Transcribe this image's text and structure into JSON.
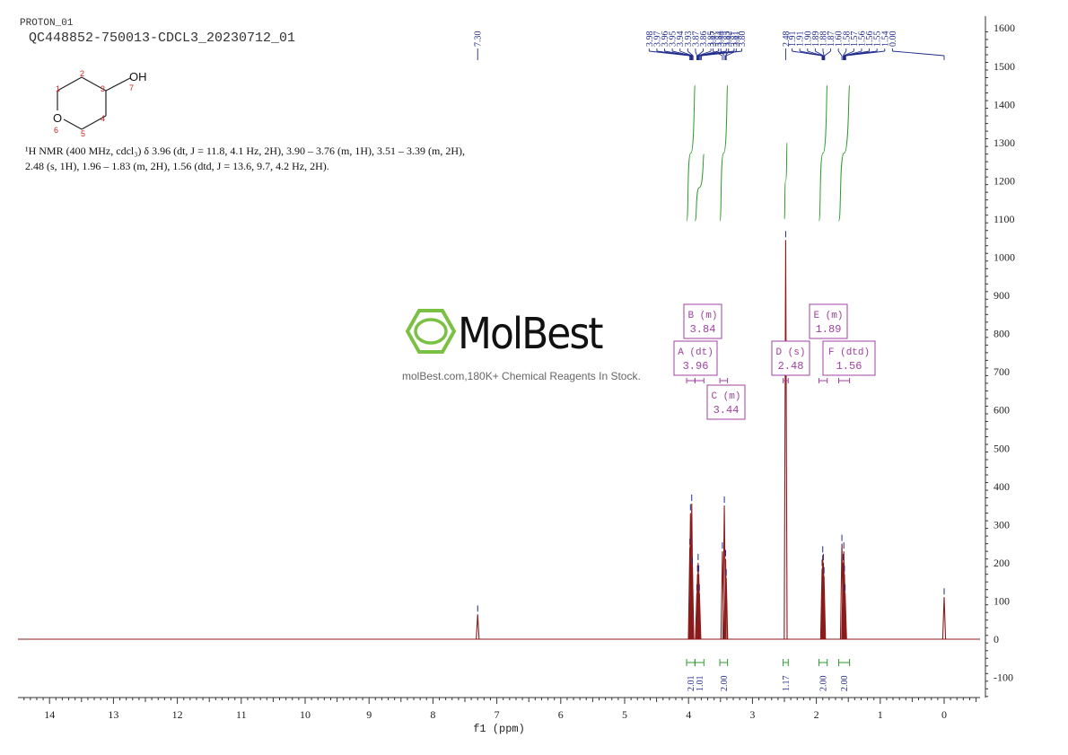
{
  "header": {
    "experiment": "PROTON_01",
    "sample_id": "QC448852-750013-CDCL3_20230712_01"
  },
  "molecule": {
    "oh_label": "OH",
    "ring_oxygen_label": "O",
    "atom_numbers": [
      "1",
      "2",
      "3",
      "4",
      "5",
      "6",
      "7"
    ]
  },
  "nmr_description": {
    "line1": "¹H NMR (400 MHz, cdcl₃) δ 3.96 (dt, J = 11.8, 4.1 Hz, 2H), 3.90 – 3.76 (m, 1H), 3.51 – 3.39 (m, 2H),",
    "line2": "2.48 (s, 1H), 1.96 – 1.83 (m, 2H), 1.56 (dtd, J = 13.6, 9.7, 4.2 Hz, 2H)."
  },
  "watermark": {
    "brand": "MolBest",
    "tagline": "molBest.com,180K+ Chemical Reagents In Stock."
  },
  "colors": {
    "spectrum": "#8b1a1a",
    "peak_labels": "#1f2a8a",
    "integral": "#2e9a2e",
    "multiplet": "#a040a0",
    "logo_green": "#7ac143",
    "axis": "#333333"
  },
  "chart_data": {
    "type": "line",
    "xlabel": "f1 (ppm)",
    "xlim": [
      14.5,
      -0.55
    ],
    "ylim": [
      -155,
      1620
    ],
    "x_ticks": [
      14,
      13,
      12,
      11,
      10,
      9,
      8,
      7,
      6,
      5,
      4,
      3,
      2,
      1,
      0
    ],
    "y_ticks": [
      1600,
      1500,
      1400,
      1300,
      1200,
      1100,
      1000,
      900,
      800,
      700,
      600,
      500,
      400,
      300,
      200,
      100,
      0,
      -100
    ],
    "peaks": [
      {
        "ppm": 7.3,
        "height": 65
      },
      {
        "ppm": 3.98,
        "height": 240
      },
      {
        "ppm": 3.97,
        "height": 330
      },
      {
        "ppm": 3.96,
        "height": 250
      },
      {
        "ppm": 3.95,
        "height": 355
      },
      {
        "ppm": 3.94,
        "height": 190
      },
      {
        "ppm": 3.87,
        "height": 120
      },
      {
        "ppm": 3.86,
        "height": 170
      },
      {
        "ppm": 3.85,
        "height": 200
      },
      {
        "ppm": 3.84,
        "height": 170
      },
      {
        "ppm": 3.83,
        "height": 120
      },
      {
        "ppm": 3.47,
        "height": 230
      },
      {
        "ppm": 3.44,
        "height": 350
      },
      {
        "ppm": 3.42,
        "height": 210
      },
      {
        "ppm": 3.41,
        "height": 160
      },
      {
        "ppm": 2.48,
        "height": 1045
      },
      {
        "ppm": 1.91,
        "height": 185
      },
      {
        "ppm": 1.9,
        "height": 220
      },
      {
        "ppm": 1.89,
        "height": 200
      },
      {
        "ppm": 1.88,
        "height": 165
      },
      {
        "ppm": 1.6,
        "height": 250
      },
      {
        "ppm": 1.58,
        "height": 200
      },
      {
        "ppm": 1.57,
        "height": 230
      },
      {
        "ppm": 1.56,
        "height": 170
      },
      {
        "ppm": 1.55,
        "height": 120
      },
      {
        "ppm": 0.0,
        "height": 110
      }
    ],
    "peak_labels": [
      {
        "group": [
          3.98,
          3.97,
          3.96,
          3.95,
          3.94,
          3.93,
          3.87,
          3.86,
          3.85,
          3.84,
          3.83,
          3.81,
          3.8
        ],
        "labels": [
          "3.98",
          "3.97",
          "3.96",
          "3.95",
          "3.94",
          "3.93",
          "3.87",
          "3.86",
          "3.85",
          "3.84",
          "3.83",
          "3.81",
          "3.80"
        ]
      },
      {
        "group": [
          3.47,
          3.44,
          3.42,
          3.41
        ],
        "labels": [
          "3.47",
          "3.44",
          "3.42",
          "3.41"
        ]
      },
      {
        "group": [
          2.48
        ],
        "labels": [
          "2.48"
        ]
      },
      {
        "group": [
          1.91,
          1.91,
          1.9,
          1.89,
          1.88,
          1.87,
          1.6,
          1.58,
          1.57,
          1.56,
          1.56,
          1.55,
          1.54,
          0.0
        ],
        "labels": [
          "1.91",
          "1.91",
          "1.90",
          "1.89",
          "1.88",
          "1.87",
          "1.60",
          "1.58",
          "1.57",
          "1.56",
          "1.56",
          "1.55",
          "1.54",
          "0.00"
        ]
      },
      {
        "group": [
          7.3
        ],
        "labels": [
          "7.30"
        ]
      }
    ],
    "integrals": [
      {
        "from": 4.03,
        "to": 3.9,
        "value": "2.01"
      },
      {
        "from": 3.9,
        "to": 3.76,
        "value": "1.01"
      },
      {
        "from": 3.51,
        "to": 3.39,
        "value": "2.00"
      },
      {
        "from": 2.52,
        "to": 2.44,
        "value": "1.17"
      },
      {
        "from": 1.96,
        "to": 1.83,
        "value": "2.00"
      },
      {
        "from": 1.65,
        "to": 1.48,
        "value": "2.00"
      }
    ],
    "multiplets": [
      {
        "id": "A",
        "type": "dt",
        "shift": "3.96",
        "range": [
          4.03,
          3.9
        ]
      },
      {
        "id": "B",
        "type": "m",
        "shift": "3.84",
        "range": [
          3.9,
          3.76
        ]
      },
      {
        "id": "C",
        "type": "m",
        "shift": "3.44",
        "range": [
          3.51,
          3.39
        ]
      },
      {
        "id": "D",
        "type": "s",
        "shift": "2.48",
        "range": [
          2.52,
          2.44
        ]
      },
      {
        "id": "E",
        "type": "m",
        "shift": "1.89",
        "range": [
          1.96,
          1.83
        ]
      },
      {
        "id": "F",
        "type": "dtd",
        "shift": "1.56",
        "range": [
          1.65,
          1.48
        ]
      }
    ],
    "integral_curves": [
      {
        "from": 4.03,
        "to": 3.9,
        "y_start": 1095,
        "y_end": 1450
      },
      {
        "from": 3.9,
        "to": 3.76,
        "y_start": 1095,
        "y_end": 1270
      },
      {
        "from": 3.51,
        "to": 3.39,
        "y_start": 1095,
        "y_end": 1450
      },
      {
        "from": 2.5,
        "to": 2.46,
        "y_start": 1100,
        "y_end": 1300
      },
      {
        "from": 1.96,
        "to": 1.83,
        "y_start": 1095,
        "y_end": 1450
      },
      {
        "from": 1.65,
        "to": 1.48,
        "y_start": 1095,
        "y_end": 1450
      }
    ]
  }
}
